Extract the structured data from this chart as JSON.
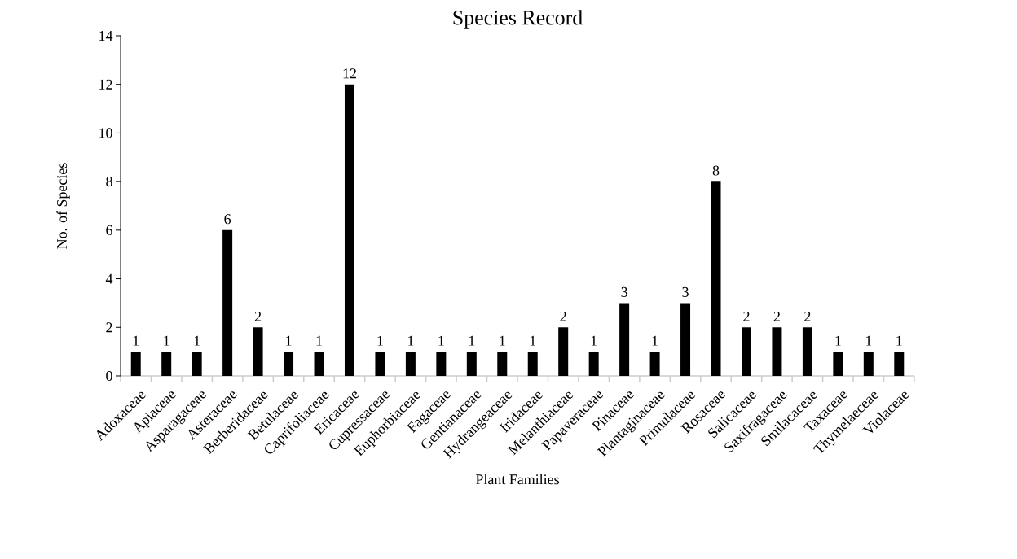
{
  "chart_data": {
    "type": "bar",
    "title": "Species Record",
    "xlabel": "Plant Families",
    "ylabel": "No. of Species",
    "categories": [
      "Adoxaceae",
      "Apiaceae",
      "Asparagaceae",
      "Asteraceae",
      "Berberidaceae",
      "Betulaceae",
      "Caprifoliaceae",
      "Ericaceae",
      "Cupressaceae",
      "Euphorbiaceae",
      "Fagaceae",
      "Gentianaceae",
      "Hydrangeaceae",
      "Iridaceae",
      "Melanthiaceae",
      "Papaveraceae",
      "Pinaceae",
      "Plantaginaceae",
      "Primulaceae",
      "Rosaceae",
      "Salicaceae",
      "Saxifragaceae",
      "Smilacaceae",
      "Taxaceae",
      "Thymelaeceae",
      "Violaceae"
    ],
    "values": [
      1,
      1,
      1,
      6,
      2,
      1,
      1,
      12,
      1,
      1,
      1,
      1,
      1,
      1,
      2,
      1,
      3,
      1,
      3,
      8,
      2,
      2,
      2,
      1,
      1,
      1
    ],
    "color": "#000000",
    "ylim": [
      0,
      14
    ],
    "yticks": [
      0,
      2,
      4,
      6,
      8,
      10,
      12,
      14
    ],
    "data_labels": true,
    "grid": false
  }
}
